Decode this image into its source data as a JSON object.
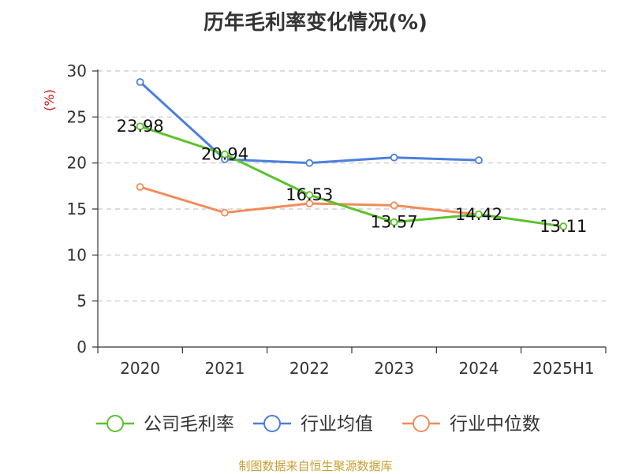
{
  "title": "历年毛利率变化情况(%)",
  "source": "制图数据来自恒生聚源数据库",
  "colors": {
    "company": "#5cc22b",
    "industry_avg": "#4a7fdc",
    "industry_median": "#f08c5a"
  },
  "chart_data": {
    "type": "line",
    "title": "历年毛利率变化情况(%)",
    "xlabel": "",
    "ylabel": "(%)",
    "categories": [
      "2020",
      "2021",
      "2022",
      "2023",
      "2024",
      "2025H1"
    ],
    "ylim": [
      0,
      30
    ],
    "yticks": [
      "0",
      "5",
      "10",
      "15",
      "20",
      "25",
      "30"
    ],
    "grid": true,
    "legend_position": "bottom",
    "series": [
      {
        "name": "公司毛利率",
        "values": [
          23.98,
          20.94,
          16.53,
          13.57,
          14.42,
          13.11
        ],
        "labels": [
          "23.98",
          "20.94",
          "16.53",
          "13.57",
          "14.42",
          "13.11"
        ]
      },
      {
        "name": "行业均值",
        "values": [
          28.8,
          20.4,
          20.0,
          20.6,
          20.3,
          null
        ]
      },
      {
        "name": "行业中位数",
        "values": [
          17.4,
          14.6,
          15.6,
          15.4,
          14.4,
          null
        ]
      }
    ]
  }
}
